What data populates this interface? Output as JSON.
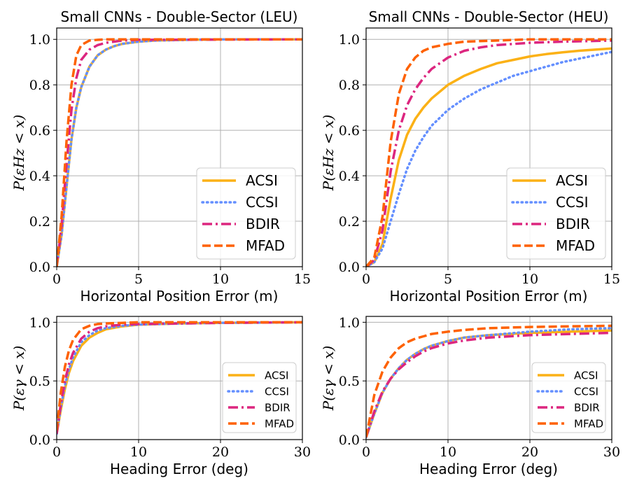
{
  "colors": {
    "ACSI": "#FBB116",
    "CCSI": "#648FFF",
    "BDIR": "#DC267F",
    "MFAD": "#FE6100",
    "grid": "#b0b0b0"
  },
  "chart_data": [
    {
      "type": "line",
      "title": "Small CNNs - Double-Sector (LEU)",
      "xlabel": "Horizontal Position Error (m)",
      "ylabel": "P(εHz < x)",
      "xlim": [
        0,
        15
      ],
      "ylim": [
        0,
        1.05
      ],
      "xticks": [
        0,
        5,
        10,
        15
      ],
      "xtick_labels": [
        "0",
        "5",
        "10",
        "15"
      ],
      "yticks": [
        0,
        0.2,
        0.4,
        0.6,
        0.8,
        1.0
      ],
      "ytick_labels": [
        "0.0",
        "0.2",
        "0.4",
        "0.6",
        "0.8",
        "1.0"
      ],
      "legend": "lower-right",
      "series": [
        {
          "name": "ACSI",
          "style": "solid",
          "x": [
            0,
            0.3,
            0.6,
            0.9,
            1.2,
            1.5,
            2.0,
            2.5,
            3.0,
            3.5,
            4.0,
            5.0,
            6.0,
            8.0,
            10.0,
            15.0
          ],
          "y": [
            0,
            0.14,
            0.35,
            0.56,
            0.7,
            0.79,
            0.88,
            0.93,
            0.955,
            0.97,
            0.98,
            0.99,
            0.995,
            0.998,
            1.0,
            1.0
          ]
        },
        {
          "name": "CCSI",
          "style": "dotted",
          "x": [
            0,
            0.3,
            0.6,
            0.9,
            1.2,
            1.5,
            2.0,
            2.5,
            3.0,
            3.5,
            4.0,
            5.0,
            6.0,
            8.0,
            10.0,
            15.0
          ],
          "y": [
            0,
            0.14,
            0.35,
            0.56,
            0.7,
            0.79,
            0.88,
            0.93,
            0.955,
            0.97,
            0.98,
            0.99,
            0.995,
            0.998,
            1.0,
            1.0
          ]
        },
        {
          "name": "BDIR",
          "style": "dashdot",
          "x": [
            0,
            0.3,
            0.6,
            0.9,
            1.2,
            1.5,
            2.0,
            2.5,
            3.0,
            3.5,
            4.0,
            5.0,
            15.0
          ],
          "y": [
            0,
            0.18,
            0.45,
            0.69,
            0.83,
            0.91,
            0.955,
            0.975,
            0.985,
            0.99,
            0.995,
            0.998,
            1.0
          ]
        },
        {
          "name": "MFAD",
          "style": "dashed",
          "x": [
            0,
            0.3,
            0.6,
            0.9,
            1.2,
            1.5,
            2.0,
            2.5,
            3.0,
            4.0,
            15.0
          ],
          "y": [
            0,
            0.22,
            0.55,
            0.8,
            0.93,
            0.975,
            0.995,
            0.998,
            1.0,
            1.0,
            1.0
          ]
        }
      ]
    },
    {
      "type": "line",
      "title": "Small CNNs - Double-Sector (HEU)",
      "xlabel": "Horizontal Position Error (m)",
      "ylabel": "P(εHz < x)",
      "xlim": [
        0,
        15
      ],
      "ylim": [
        0,
        1.05
      ],
      "xticks": [
        0,
        5,
        10,
        15
      ],
      "xtick_labels": [
        "0",
        "5",
        "10",
        "15"
      ],
      "yticks": [
        0,
        0.2,
        0.4,
        0.6,
        0.8,
        1.0
      ],
      "ytick_labels": [
        "0.0",
        "0.2",
        "0.4",
        "0.6",
        "0.8",
        "1.0"
      ],
      "legend": "lower-right",
      "series": [
        {
          "name": "ACSI",
          "style": "solid",
          "x": [
            0,
            0.5,
            1.0,
            1.5,
            2.0,
            2.5,
            3.0,
            3.5,
            4.0,
            5.0,
            6.0,
            7.0,
            8.0,
            9.0,
            10.0,
            11.0,
            12.0,
            13.0,
            14.0,
            15.0
          ],
          "y": [
            0,
            0.02,
            0.1,
            0.3,
            0.47,
            0.58,
            0.65,
            0.7,
            0.74,
            0.8,
            0.84,
            0.87,
            0.895,
            0.91,
            0.925,
            0.935,
            0.943,
            0.95,
            0.955,
            0.96
          ]
        },
        {
          "name": "CCSI",
          "style": "dotted",
          "x": [
            0,
            0.5,
            1.0,
            1.5,
            2.0,
            2.5,
            3.0,
            3.5,
            4.0,
            5.0,
            6.0,
            7.0,
            8.0,
            9.0,
            10.0,
            11.0,
            12.0,
            13.0,
            14.0,
            15.0
          ],
          "y": [
            0,
            0.02,
            0.08,
            0.2,
            0.32,
            0.43,
            0.51,
            0.57,
            0.62,
            0.69,
            0.74,
            0.78,
            0.81,
            0.84,
            0.86,
            0.88,
            0.9,
            0.915,
            0.93,
            0.945
          ]
        },
        {
          "name": "BDIR",
          "style": "dashdot",
          "x": [
            0,
            0.5,
            1.0,
            1.5,
            2.0,
            2.5,
            3.0,
            3.5,
            4.0,
            5.0,
            6.0,
            7.0,
            8.0,
            10.0,
            12.0,
            15.0
          ],
          "y": [
            0,
            0.03,
            0.16,
            0.42,
            0.6,
            0.71,
            0.78,
            0.83,
            0.87,
            0.92,
            0.95,
            0.965,
            0.975,
            0.985,
            0.99,
            0.995
          ]
        },
        {
          "name": "MFAD",
          "style": "dashed",
          "x": [
            0,
            0.5,
            1.0,
            1.5,
            2.0,
            2.5,
            3.0,
            3.5,
            4.0,
            5.0,
            6.0,
            8.0,
            10.0,
            15.0
          ],
          "y": [
            0,
            0.04,
            0.22,
            0.55,
            0.76,
            0.87,
            0.92,
            0.95,
            0.965,
            0.98,
            0.99,
            0.995,
            1.0,
            1.0
          ]
        }
      ]
    },
    {
      "type": "line",
      "title": "",
      "xlabel": "Heading Error (deg)",
      "ylabel": "P(εγ < x)",
      "xlim": [
        0,
        30
      ],
      "ylim": [
        0,
        1.05
      ],
      "xticks": [
        0,
        10,
        20,
        30
      ],
      "xtick_labels": [
        "0",
        "10",
        "20",
        "30"
      ],
      "yticks": [
        0,
        0.5,
        1.0
      ],
      "ytick_labels": [
        "0.0",
        "0.5",
        "1.0"
      ],
      "legend": "lower-right",
      "series": [
        {
          "name": "ACSI",
          "style": "solid",
          "x": [
            0,
            0.5,
            1.0,
            1.5,
            2.0,
            3.0,
            4.0,
            5.0,
            6.0,
            8.0,
            10.0,
            15.0,
            20.0,
            30.0
          ],
          "y": [
            0.05,
            0.25,
            0.43,
            0.57,
            0.67,
            0.8,
            0.87,
            0.91,
            0.94,
            0.965,
            0.98,
            0.99,
            0.995,
            1.0
          ]
        },
        {
          "name": "CCSI",
          "style": "dotted",
          "x": [
            0,
            0.5,
            1.0,
            1.5,
            2.0,
            3.0,
            4.0,
            5.0,
            6.0,
            8.0,
            10.0,
            15.0,
            20.0,
            30.0
          ],
          "y": [
            0.05,
            0.27,
            0.46,
            0.6,
            0.7,
            0.83,
            0.89,
            0.93,
            0.95,
            0.97,
            0.98,
            0.99,
            0.995,
            1.0
          ]
        },
        {
          "name": "BDIR",
          "style": "dashdot",
          "x": [
            0,
            0.5,
            1.0,
            1.5,
            2.0,
            3.0,
            4.0,
            5.0,
            6.0,
            8.0,
            10.0,
            15.0,
            20.0,
            30.0
          ],
          "y": [
            0.05,
            0.3,
            0.5,
            0.64,
            0.74,
            0.86,
            0.92,
            0.95,
            0.965,
            0.98,
            0.985,
            0.99,
            0.995,
            1.0
          ]
        },
        {
          "name": "MFAD",
          "style": "dashed",
          "x": [
            0,
            0.5,
            1.0,
            1.5,
            2.0,
            3.0,
            4.0,
            5.0,
            6.0,
            8.0,
            10.0,
            20.0,
            30.0
          ],
          "y": [
            0.08,
            0.4,
            0.62,
            0.76,
            0.85,
            0.94,
            0.97,
            0.985,
            0.99,
            0.995,
            1.0,
            1.0,
            1.0
          ]
        }
      ]
    },
    {
      "type": "line",
      "title": "",
      "xlabel": "Heading Error (deg)",
      "ylabel": "P(εγ < x)",
      "xlim": [
        0,
        30
      ],
      "ylim": [
        0,
        1.05
      ],
      "xticks": [
        0,
        10,
        20,
        30
      ],
      "xtick_labels": [
        "0",
        "10",
        "20",
        "30"
      ],
      "yticks": [
        0,
        0.5,
        1.0
      ],
      "ytick_labels": [
        "0.0",
        "0.5",
        "1.0"
      ],
      "legend": "lower-right",
      "series": [
        {
          "name": "ACSI",
          "style": "solid",
          "x": [
            0,
            1,
            2,
            3,
            4,
            5,
            6,
            7,
            8,
            10,
            12,
            15,
            20,
            25,
            30
          ],
          "y": [
            0.02,
            0.22,
            0.4,
            0.52,
            0.61,
            0.68,
            0.73,
            0.77,
            0.8,
            0.84,
            0.87,
            0.89,
            0.91,
            0.92,
            0.93
          ]
        },
        {
          "name": "CCSI",
          "style": "dotted",
          "x": [
            0,
            1,
            2,
            3,
            4,
            5,
            6,
            7,
            8,
            10,
            12,
            15,
            20,
            25,
            30
          ],
          "y": [
            0.02,
            0.22,
            0.4,
            0.52,
            0.61,
            0.68,
            0.73,
            0.77,
            0.8,
            0.84,
            0.87,
            0.89,
            0.92,
            0.94,
            0.95
          ]
        },
        {
          "name": "BDIR",
          "style": "dashdot",
          "x": [
            0,
            1,
            2,
            3,
            4,
            5,
            6,
            7,
            8,
            10,
            12,
            15,
            20,
            25,
            30
          ],
          "y": [
            0.02,
            0.24,
            0.41,
            0.52,
            0.6,
            0.66,
            0.71,
            0.75,
            0.78,
            0.82,
            0.845,
            0.87,
            0.89,
            0.9,
            0.91
          ]
        },
        {
          "name": "MFAD",
          "style": "dashed",
          "x": [
            0,
            1,
            2,
            3,
            4,
            5,
            6,
            7,
            8,
            10,
            12,
            15,
            20,
            25,
            30
          ],
          "y": [
            0.02,
            0.38,
            0.58,
            0.7,
            0.78,
            0.83,
            0.86,
            0.88,
            0.9,
            0.92,
            0.935,
            0.95,
            0.96,
            0.965,
            0.97
          ]
        }
      ]
    }
  ]
}
